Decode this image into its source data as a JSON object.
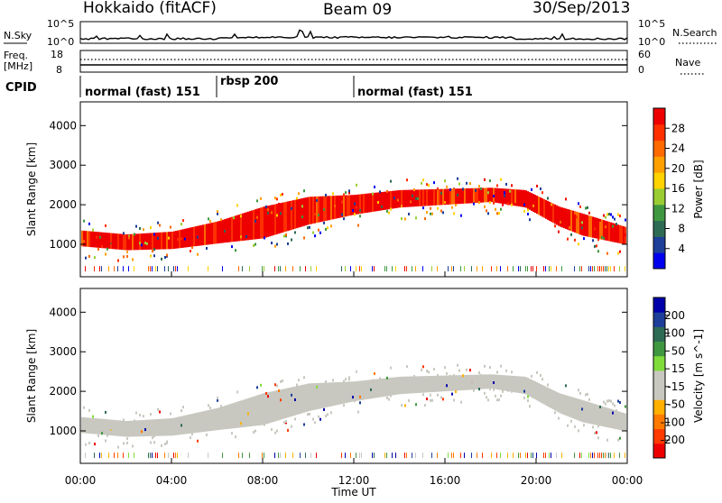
{
  "header": {
    "station": "Hokkaido (fitACF)",
    "beam": "Beam 09",
    "date": "30/Sep/2013"
  },
  "top_panels": {
    "nsky": {
      "label": "N.Sky",
      "left_ticks": [
        "10^5",
        "10^0"
      ],
      "right_ticks": [
        "10^5",
        "10^0"
      ],
      "right_label": "N.Search"
    },
    "freq": {
      "label_line1": "Freq.",
      "label_line2": "[MHz]",
      "left_ticks": [
        "18",
        "8"
      ],
      "right_ticks": [
        "60",
        "0"
      ],
      "right_label": "Nave"
    },
    "cpid": {
      "label": "CPID",
      "segments": [
        {
          "name": "normal (fast) 151",
          "start_hour": 0,
          "end_hour": 6
        },
        {
          "name": "rbsp 200",
          "start_hour": 6,
          "end_hour": 12
        },
        {
          "name": "normal (fast) 151",
          "start_hour": 12,
          "end_hour": 24
        }
      ]
    }
  },
  "colors": {
    "power_scale": [
      "#0000ee",
      "#1d3f9a",
      "#2e6b55",
      "#3f9840",
      "#9acd32",
      "#ffd200",
      "#ffa000",
      "#ff6a00",
      "#ff3000",
      "#ee0000"
    ],
    "velocity_scale": [
      "#ee0000",
      "#ff3a00",
      "#ff7a00",
      "#ffb000",
      "#c8c8c0",
      "#c8c8c0",
      "#7fdc3a",
      "#3f9840",
      "#2e6b55",
      "#1d3f9a",
      "#0000aa"
    ],
    "ground_scatter": "#c8c8c0"
  },
  "chart_data": [
    {
      "type": "heatmap",
      "name": "power",
      "xlabel": "",
      "ylabel": "Slant Range [km]",
      "xlim": [
        0,
        24
      ],
      "ylim": [
        180,
        4600
      ],
      "y_ticks": [
        "1000",
        "2000",
        "3000",
        "4000"
      ],
      "colorbar": {
        "label": "Power [dB]",
        "ticks": [
          "28",
          "24",
          "20",
          "16",
          "12",
          "8",
          "4"
        ],
        "range": [
          0,
          32
        ]
      },
      "scatter_bands": [
        {
          "desc": "main echo band",
          "hours": [
            0,
            2,
            4,
            6,
            8,
            10,
            12,
            14,
            16,
            18,
            19.5,
            21,
            22,
            24
          ],
          "center_km": [
            1150,
            1050,
            1100,
            1300,
            1550,
            1850,
            2000,
            2150,
            2200,
            2250,
            2150,
            1700,
            1500,
            1200
          ],
          "half_width_km": [
            200,
            200,
            220,
            280,
            400,
            350,
            250,
            220,
            200,
            180,
            220,
            250,
            280,
            220
          ],
          "power_db": 26
        }
      ]
    },
    {
      "type": "heatmap",
      "name": "velocity",
      "xlabel": "Time UT",
      "ylabel": "Slant Range [km]",
      "xlim": [
        0,
        24
      ],
      "ylim": [
        180,
        4600
      ],
      "x_ticks": [
        "00:00",
        "04:00",
        "08:00",
        "12:00",
        "16:00",
        "20:00",
        "00:00"
      ],
      "y_ticks": [
        "1000",
        "2000",
        "3000",
        "4000"
      ],
      "colorbar": {
        "label": "Velocity [m s^-1]",
        "ticks": [
          "200",
          "100",
          "50",
          "15",
          "-15",
          "-50",
          "-100",
          "-200"
        ],
        "range": [
          -250,
          250
        ]
      }
    }
  ]
}
